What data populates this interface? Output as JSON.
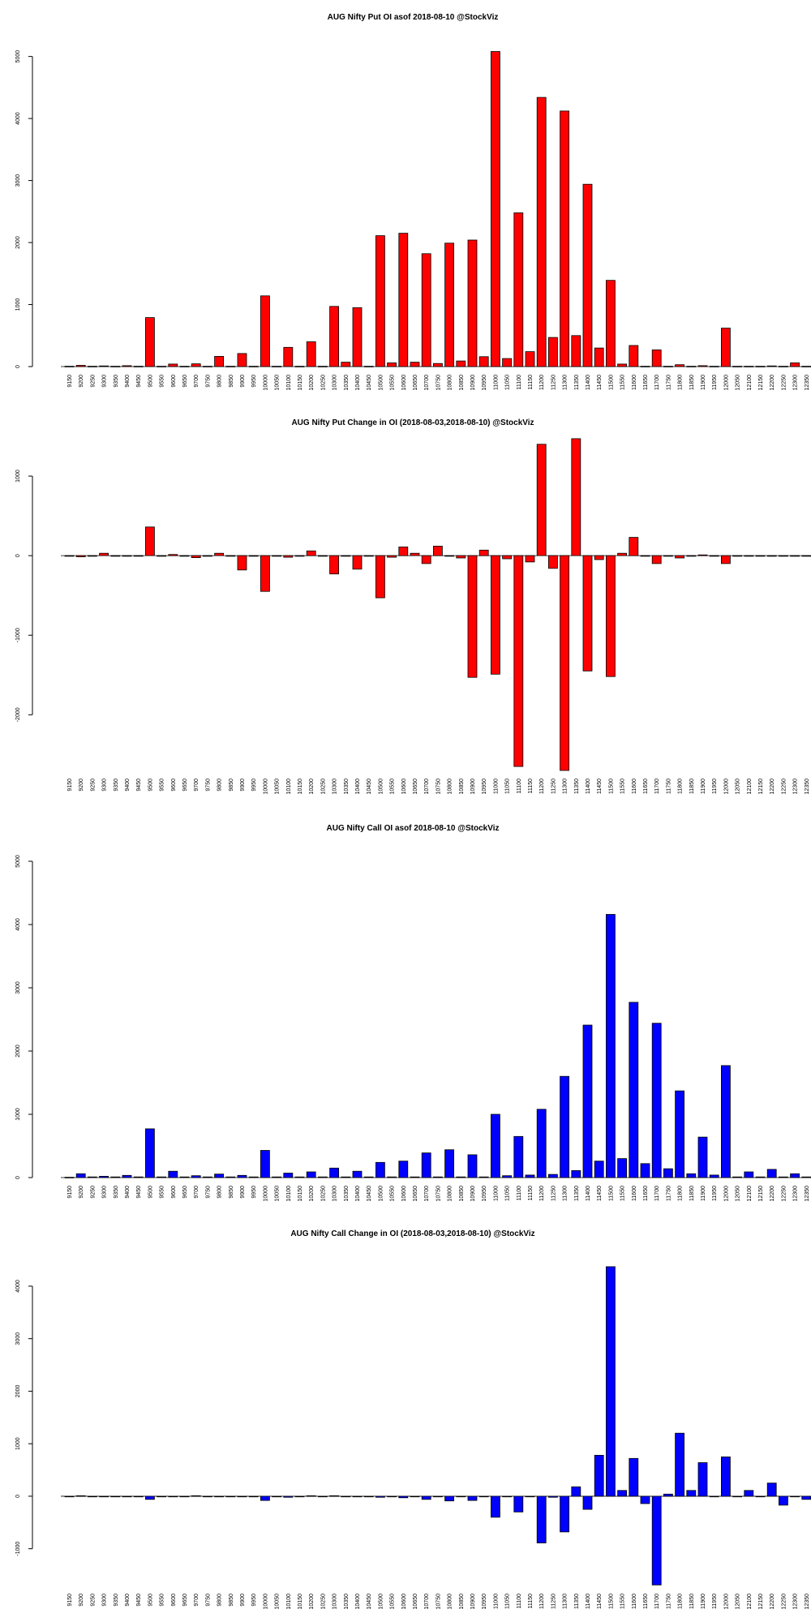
{
  "strikes": [
    "9150",
    "9200",
    "9250",
    "9300",
    "9350",
    "9400",
    "9450",
    "9500",
    "9550",
    "9600",
    "9650",
    "9700",
    "9750",
    "9800",
    "9850",
    "9900",
    "9950",
    "10000",
    "10050",
    "10100",
    "10150",
    "10200",
    "10250",
    "10300",
    "10350",
    "10400",
    "10450",
    "10500",
    "10550",
    "10600",
    "10650",
    "10700",
    "10750",
    "10800",
    "10850",
    "10900",
    "10950",
    "11000",
    "11050",
    "11100",
    "11150",
    "11200",
    "11250",
    "11300",
    "11350",
    "11400",
    "11450",
    "11500",
    "11550",
    "11600",
    "11650",
    "11700",
    "11750",
    "11800",
    "11850",
    "11900",
    "11950",
    "12000",
    "12050",
    "12100",
    "12150",
    "12200",
    "12250",
    "12300",
    "12350"
  ],
  "colors": {
    "put": "#ff0000",
    "call": "#0000ff",
    "bar_outline": "#000000"
  },
  "chart_data": [
    {
      "type": "bar",
      "title": "AUG Nifty Put OI asof 2018-08-10 @StockViz",
      "color": "#ff0000",
      "ylim": [
        0,
        5100
      ],
      "yticks": [
        0,
        1000,
        2000,
        3000,
        4000,
        5000
      ],
      "values": [
        5,
        20,
        5,
        10,
        5,
        15,
        5,
        790,
        5,
        40,
        5,
        45,
        5,
        165,
        5,
        210,
        5,
        1140,
        5,
        310,
        5,
        400,
        5,
        970,
        70,
        950,
        5,
        2110,
        60,
        2150,
        70,
        1820,
        50,
        1990,
        90,
        2040,
        160,
        5080,
        130,
        2480,
        240,
        4340,
        470,
        4120,
        500,
        2940,
        300,
        1390,
        40,
        340,
        5,
        270,
        5,
        30,
        5,
        15,
        5,
        620,
        5,
        5,
        5,
        10,
        5,
        60,
        5
      ]
    },
    {
      "type": "bar",
      "title": "AUG Nifty Put Change in OI (2018-08-03,2018-08-10) @StockViz",
      "color": "#ff0000",
      "ylim": [
        -2700,
        1500
      ],
      "yticks": [
        -2000,
        -1000,
        0,
        1000
      ],
      "values": [
        -5,
        -15,
        -5,
        30,
        -5,
        -5,
        -5,
        360,
        -5,
        15,
        -5,
        -25,
        -5,
        30,
        -5,
        -180,
        -5,
        -450,
        -5,
        -20,
        -5,
        60,
        -5,
        -230,
        -5,
        -170,
        -5,
        -530,
        -20,
        110,
        30,
        -100,
        120,
        -5,
        -30,
        -1530,
        70,
        -1490,
        -40,
        -2650,
        -80,
        1400,
        -160,
        -2700,
        1470,
        -1450,
        -50,
        -1520,
        30,
        230,
        -5,
        -100,
        -5,
        -30,
        -5,
        10,
        -5,
        -100,
        -5,
        -5,
        -5,
        -5,
        -5,
        -5,
        -5
      ]
    },
    {
      "type": "bar",
      "title": "AUG Nifty Call OI asof 2018-08-10 @StockViz",
      "color": "#0000ff",
      "ylim": [
        0,
        5000
      ],
      "yticks": [
        0,
        1000,
        2000,
        3000,
        4000,
        5000
      ],
      "values": [
        5,
        60,
        10,
        20,
        10,
        35,
        10,
        770,
        10,
        100,
        10,
        30,
        10,
        55,
        10,
        35,
        10,
        430,
        10,
        70,
        10,
        90,
        10,
        150,
        10,
        100,
        10,
        240,
        10,
        260,
        10,
        390,
        10,
        440,
        10,
        360,
        10,
        1000,
        30,
        650,
        40,
        1080,
        50,
        1600,
        110,
        2410,
        260,
        4160,
        300,
        2770,
        220,
        2440,
        140,
        1370,
        60,
        640,
        40,
        1770,
        10,
        90,
        10,
        130,
        10,
        60,
        10
      ]
    },
    {
      "type": "bar",
      "title": "AUG Nifty Call Change in OI (2018-08-03,2018-08-10) @StockViz",
      "color": "#0000ff",
      "ylim": [
        -1700,
        4400
      ],
      "yticks": [
        -1000,
        0,
        1000,
        2000,
        3000,
        4000
      ],
      "values": [
        -5,
        10,
        -5,
        -10,
        -5,
        -10,
        -5,
        -60,
        -5,
        -10,
        -5,
        10,
        -5,
        -5,
        -5,
        -5,
        -5,
        -80,
        -5,
        -20,
        -5,
        10,
        -5,
        10,
        -5,
        -5,
        -5,
        -20,
        -5,
        -30,
        -5,
        -60,
        -5,
        -90,
        -5,
        -80,
        -5,
        -400,
        -5,
        -300,
        -5,
        -890,
        -20,
        -680,
        180,
        -250,
        780,
        4370,
        110,
        720,
        -140,
        -1690,
        40,
        1200,
        110,
        640,
        -5,
        750,
        -5,
        110,
        -5,
        250,
        -170,
        -5,
        -60
      ]
    }
  ]
}
